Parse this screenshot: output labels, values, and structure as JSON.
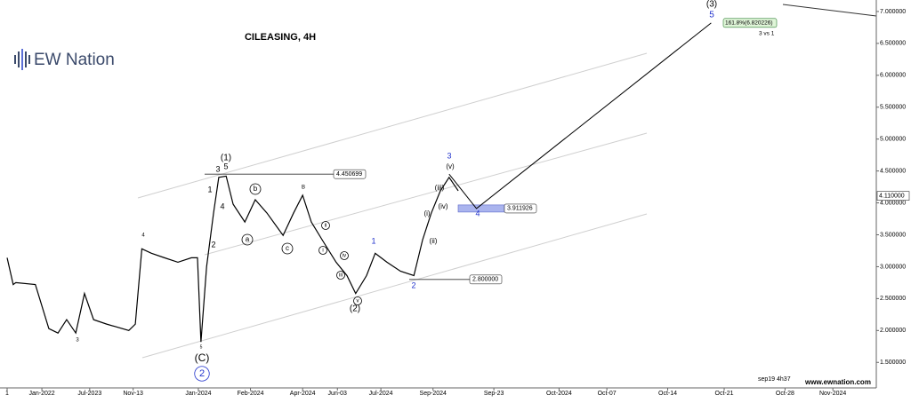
{
  "chart_data": {
    "type": "line",
    "title": "CILEASING, 4H",
    "brand": "EW Nation",
    "timestamp": "sep19 4h37",
    "website": "www.ewnation.com",
    "xlim": [
      0,
      200
    ],
    "xticks": [
      {
        "value": 0,
        "label": "1"
      },
      {
        "value": 8,
        "label": "Jan-2022"
      },
      {
        "value": 19,
        "label": "Jul-2023"
      },
      {
        "value": 29,
        "label": "Nov-13"
      },
      {
        "value": 44,
        "label": "Jan-2024"
      },
      {
        "value": 56,
        "label": "Feb-2024"
      },
      {
        "value": 68,
        "label": "Apr-2024"
      },
      {
        "value": 76,
        "label": "Jun-03"
      },
      {
        "value": 86,
        "label": "Jul-2024"
      },
      {
        "value": 98,
        "label": "Sep-2024"
      },
      {
        "value": 112,
        "label": "Sep-23"
      },
      {
        "value": 127,
        "label": "Oct-2024"
      },
      {
        "value": 138,
        "label": "Oct-07"
      },
      {
        "value": 152,
        "label": "Oct-14"
      },
      {
        "value": 165,
        "label": "Oct-21"
      },
      {
        "value": 179,
        "label": "Oct-28"
      },
      {
        "value": 190,
        "label": "Nov-2024"
      }
    ],
    "ylim": [
      1.1,
      7.18
    ],
    "yticks": [
      {
        "value": 1.5,
        "label": "1.500000"
      },
      {
        "value": 2.0,
        "label": "2.000000"
      },
      {
        "value": 2.5,
        "label": "2.500000"
      },
      {
        "value": 3.0,
        "label": "3.000000"
      },
      {
        "value": 3.5,
        "label": "3.500000"
      },
      {
        "value": 4.0,
        "label": "4.000000"
      },
      {
        "value": 4.5,
        "label": "4.500000"
      },
      {
        "value": 5.0,
        "label": "5.000000"
      },
      {
        "value": 5.5,
        "label": "5.500000"
      },
      {
        "value": 6.0,
        "label": "6.000000"
      },
      {
        "value": 6.5,
        "label": "6.500000"
      },
      {
        "value": 7.0,
        "label": "7.000000"
      }
    ],
    "last_price": {
      "value": 4.11,
      "label": "4.110000"
    },
    "series": [
      {
        "color": "#000000",
        "x": [
          0,
          1.4,
          2,
          6.5,
          9.6,
          11.7,
          13.7,
          15.8,
          17.8,
          19.9,
          22.9,
          28,
          29.5,
          31,
          33.2,
          36.2,
          39.3,
          42.4,
          43.8,
          44.6,
          45.9,
          47.5,
          48.7,
          50.4,
          52,
          54.7,
          57.1,
          59.8,
          63.5,
          65.9,
          68,
          70,
          72.5,
          75.7,
          78.2,
          80.2,
          82.7,
          84.7,
          87.4,
          90.5,
          93.6,
          95.6,
          97.6,
          99.7,
          101.7,
          103.8
        ],
        "values": [
          3.14,
          2.72,
          2.75,
          2.72,
          2.03,
          1.96,
          2.17,
          1.96,
          2.58,
          2.17,
          2.1,
          2.0,
          2.1,
          3.28,
          3.21,
          3.14,
          3.07,
          3.14,
          3.14,
          1.82,
          3.0,
          3.84,
          4.4,
          4.42,
          3.98,
          3.7,
          4.05,
          3.84,
          3.49,
          3.84,
          4.12,
          3.7,
          3.42,
          3.07,
          2.86,
          2.58,
          2.86,
          3.21,
          3.07,
          2.93,
          2.86,
          3.42,
          3.84,
          4.19,
          4.4,
          4.19
        ]
      },
      {
        "color": "#000000",
        "x": [
          101.7,
          108,
          162
        ],
        "values": [
          4.450699,
          3.911926,
          6.820226
        ]
      }
    ],
    "levels": [
      4.450699,
      3.911926,
      {
        "value": 2.8,
        "label": "2.800000"
      }
    ],
    "target": {
      "value": 6.820226,
      "label": "161.8%(6.820226)"
    },
    "target_note": "3 vs 1",
    "annotations": [
      "(C)",
      "2",
      "(1)",
      "5",
      "3",
      "1",
      "4",
      "2",
      "a",
      "b",
      "c",
      "B",
      "ii",
      "i",
      "iii",
      "iv",
      "v",
      "(2)",
      "1",
      "2",
      "(i)",
      "(ii)",
      "(iii)",
      "(iv)",
      "(v)",
      "3",
      "4",
      "(3)",
      "5",
      "4",
      "3",
      "5"
    ]
  }
}
